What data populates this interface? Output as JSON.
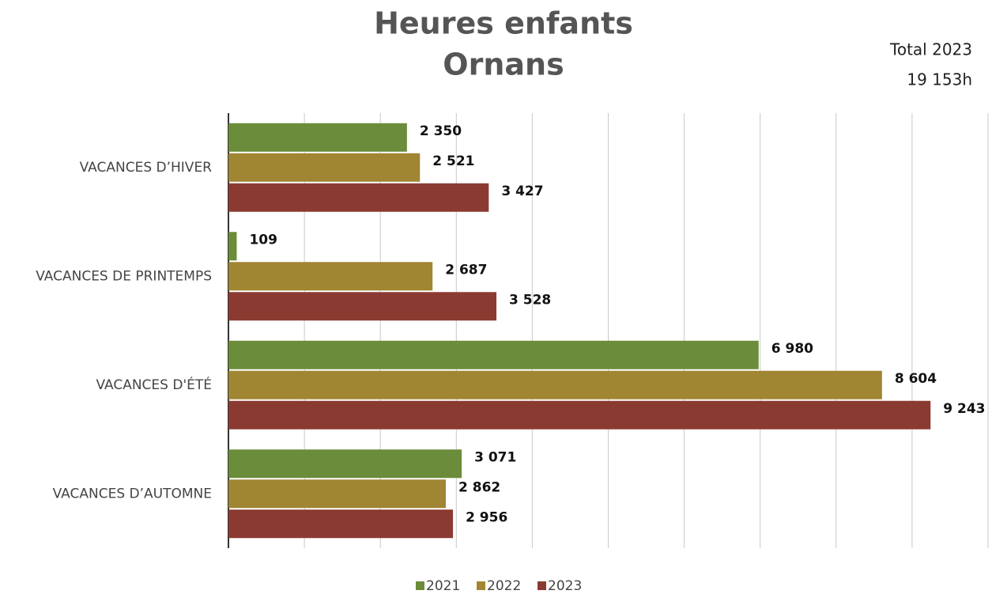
{
  "chart_data": {
    "type": "bar",
    "orientation": "horizontal",
    "title": [
      "Heures enfants",
      "Ornans"
    ],
    "annotation": [
      "Total 2023",
      "19 153h"
    ],
    "categories": [
      "VACANCES D’HIVER",
      "VACANCES DE PRINTEMPS",
      "VACANCES D'ÉTÉ",
      "VACANCES D’AUTOMNE"
    ],
    "series": [
      {
        "name": "2021",
        "color": "#6b8c3a",
        "values": [
          2350,
          109,
          6980,
          3071
        ],
        "value_labels": [
          "2 350",
          "109",
          "6 980",
          "3 071"
        ]
      },
      {
        "name": "2022",
        "color": "#a08533",
        "values": [
          2521,
          2687,
          8604,
          2862
        ],
        "value_labels": [
          "2 521",
          "2 687",
          "8 604",
          "2 862"
        ]
      },
      {
        "name": "2023",
        "color": "#8b3a32",
        "values": [
          3427,
          3528,
          9243,
          2956
        ],
        "value_labels": [
          "3 427",
          "3 528",
          "9 243",
          "2 956"
        ]
      }
    ],
    "xlim": [
      0,
      10000
    ],
    "xticks": [
      0,
      1000,
      2000,
      3000,
      4000,
      5000,
      6000,
      7000,
      8000,
      9000,
      10000
    ],
    "grid": true,
    "legend": "bottom"
  }
}
